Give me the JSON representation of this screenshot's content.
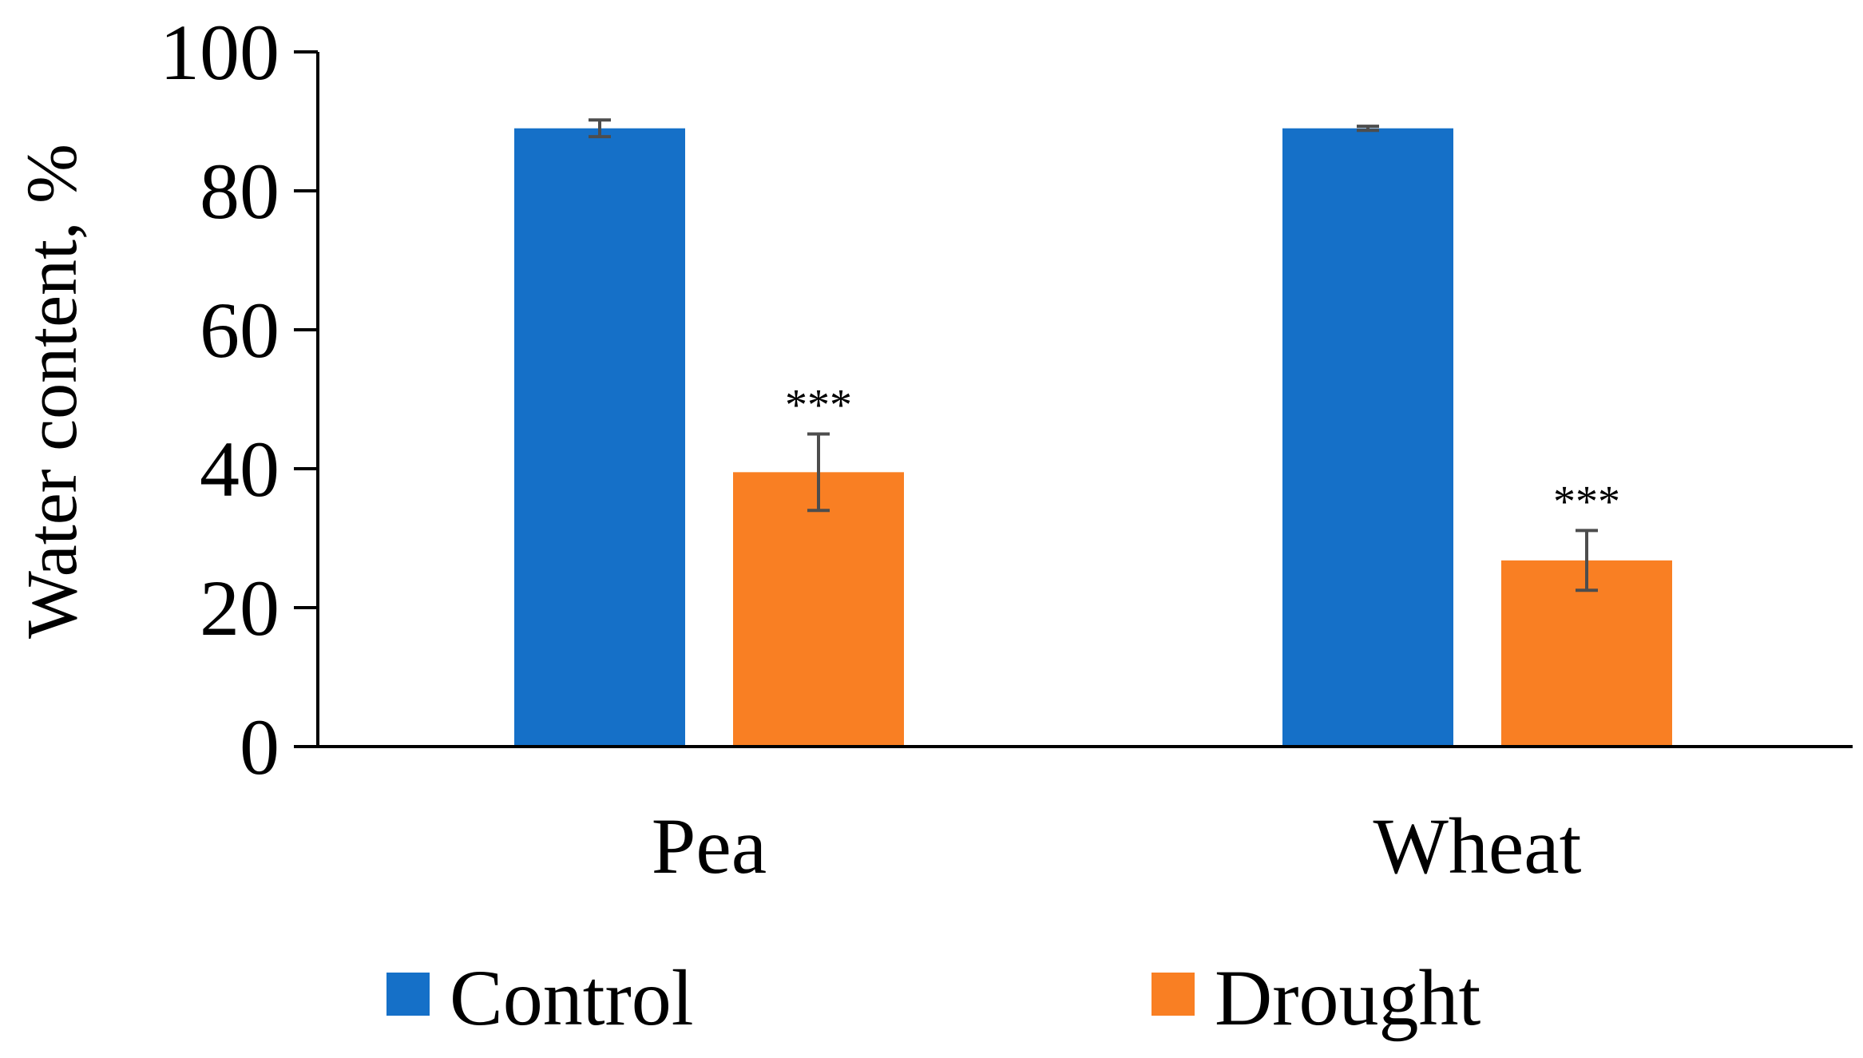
{
  "chart_data": {
    "type": "bar",
    "title": "",
    "xlabel": "",
    "ylabel": "Water content,  %",
    "ylim": [
      0,
      100
    ],
    "yticks": [
      0,
      20,
      40,
      60,
      80,
      100
    ],
    "ytick_labels": [
      "0",
      "20",
      "40",
      "60",
      "80",
      "100"
    ],
    "categories": [
      "Pea",
      "Wheat"
    ],
    "series": [
      {
        "name": "Control",
        "color": "#1570C8",
        "values": [
          89,
          89
        ],
        "errors": [
          1.2,
          0.3
        ],
        "annotations": [
          "",
          ""
        ]
      },
      {
        "name": "Drought",
        "color": "#F97F23",
        "values": [
          39.5,
          26.8
        ],
        "errors": [
          5.5,
          4.3
        ],
        "annotations": [
          "***",
          "***"
        ]
      }
    ],
    "legend_position": "bottom",
    "grid": false
  }
}
